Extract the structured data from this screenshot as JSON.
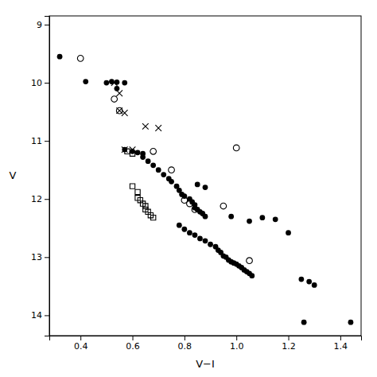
{
  "chart_data": {
    "type": "scatter",
    "xlabel": "V−I",
    "ylabel": "V",
    "xlim": [
      0.28,
      1.48
    ],
    "ylim": [
      14.35,
      8.85
    ],
    "xticks": [
      0.4,
      0.6,
      0.8,
      {
        "value": 1.0,
        "label": "1.0"
      },
      1.2,
      1.4
    ],
    "yticks": [
      9,
      10,
      11,
      12,
      13,
      14
    ],
    "grid": false,
    "series": [
      {
        "color": "black",
        "marker": "circle",
        "x": [
          0.32,
          0.42,
          0.5,
          0.52,
          0.54,
          0.57,
          0.54,
          0.57,
          0.6,
          0.62,
          0.64,
          0.64,
          0.66,
          0.68,
          0.7,
          0.72,
          0.74,
          0.75,
          0.77,
          0.78,
          0.79,
          0.8,
          0.82,
          0.83,
          0.84,
          0.84,
          0.85,
          0.86,
          0.87,
          0.88,
          0.85,
          0.88,
          0.78,
          0.8,
          0.82,
          0.84,
          0.86,
          0.88,
          0.9,
          0.92,
          0.93,
          0.94,
          0.95,
          0.96,
          0.97,
          0.98,
          0.99,
          1.0,
          1.01,
          1.02,
          1.03,
          1.04,
          1.05,
          1.06,
          0.98,
          1.05,
          1.1,
          1.15,
          1.2,
          1.25,
          1.28,
          1.3,
          1.26,
          1.44
        ],
        "y": [
          9.55,
          9.98,
          10.0,
          9.98,
          9.99,
          10.0,
          10.1,
          11.15,
          11.18,
          11.2,
          11.22,
          11.28,
          11.35,
          11.42,
          11.5,
          11.58,
          11.65,
          11.7,
          11.78,
          11.85,
          11.92,
          11.95,
          12.0,
          12.05,
          12.1,
          12.15,
          12.18,
          12.22,
          12.25,
          12.3,
          11.75,
          11.8,
          12.45,
          12.52,
          12.58,
          12.62,
          12.68,
          12.72,
          12.78,
          12.82,
          12.88,
          12.92,
          12.98,
          13.0,
          13.05,
          13.08,
          13.1,
          13.12,
          13.15,
          13.18,
          13.22,
          13.25,
          13.28,
          13.32,
          12.3,
          12.38,
          12.32,
          12.35,
          12.58,
          13.38,
          13.42,
          13.48,
          14.12,
          14.12
        ]
      },
      {
        "color": "black",
        "marker": "open-circle",
        "x": [
          0.4,
          0.53,
          0.55,
          0.68,
          0.75,
          0.8,
          0.82,
          0.84,
          0.95,
          1.0,
          1.05
        ],
        "y": [
          9.58,
          10.28,
          10.48,
          11.18,
          11.5,
          12.02,
          12.08,
          12.18,
          12.12,
          11.12,
          13.06
        ]
      },
      {
        "color": "black",
        "marker": "x",
        "x": [
          0.53,
          0.55,
          0.55,
          0.57,
          0.65,
          0.7,
          0.57,
          0.6
        ],
        "y": [
          10.0,
          10.18,
          10.48,
          10.52,
          10.75,
          10.78,
          11.15,
          11.15
        ]
      },
      {
        "color": "black",
        "marker": "open-square",
        "x": [
          0.58,
          0.6,
          0.6,
          0.62,
          0.62,
          0.63,
          0.64,
          0.65,
          0.65,
          0.66,
          0.67,
          0.68
        ],
        "y": [
          11.18,
          11.22,
          11.78,
          11.88,
          11.98,
          12.02,
          12.08,
          12.12,
          12.18,
          12.22,
          12.28,
          12.32
        ]
      }
    ]
  }
}
